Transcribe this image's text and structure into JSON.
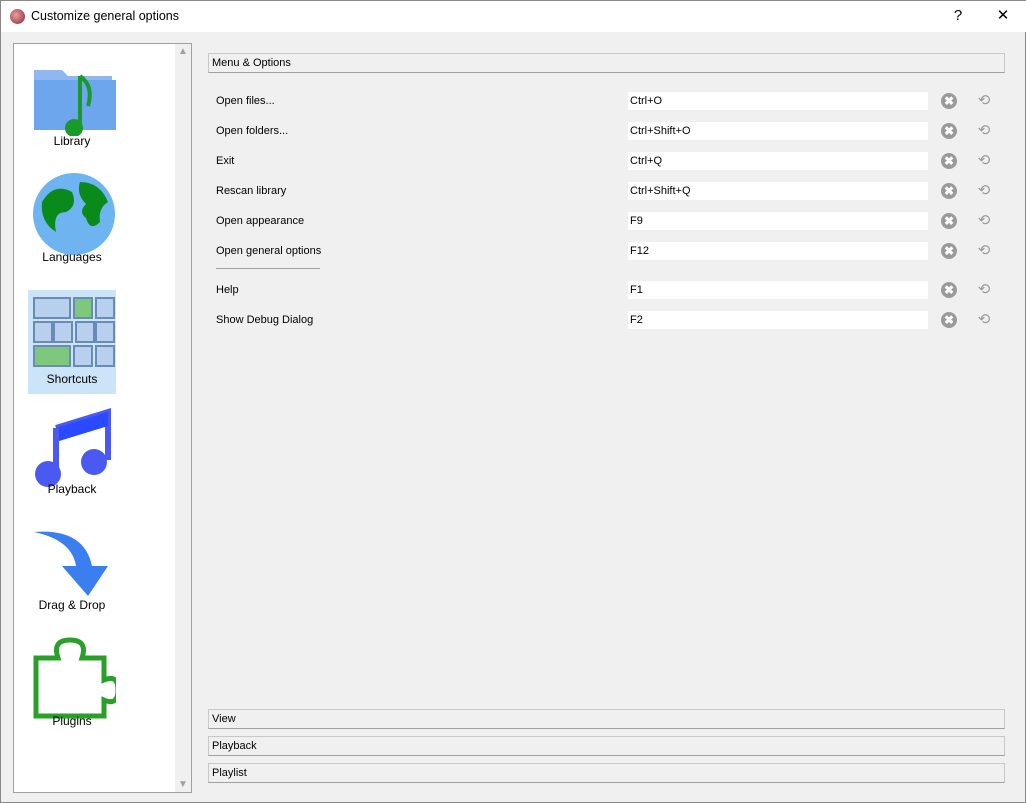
{
  "window": {
    "title": "Customize general options",
    "help": "?",
    "close": "✕"
  },
  "sidebar": {
    "items": [
      {
        "label": "Library"
      },
      {
        "label": "Languages"
      },
      {
        "label": "Shortcuts",
        "selected": true
      },
      {
        "label": "Playback"
      },
      {
        "label": "Drag & Drop"
      },
      {
        "label": "Plugins"
      }
    ]
  },
  "sections": {
    "menu": "Menu & Options",
    "view": "View",
    "playback": "Playback",
    "playlist": "Playlist"
  },
  "shortcuts": [
    {
      "label": "Open files...",
      "value": "Ctrl+O"
    },
    {
      "label": "Open folders...",
      "value": "Ctrl+Shift+O"
    },
    {
      "label": "Exit",
      "value": "Ctrl+Q"
    },
    {
      "label": "Rescan library",
      "value": "Ctrl+Shift+Q"
    },
    {
      "label": "Open appearance",
      "value": "F9"
    },
    {
      "label": "Open general options",
      "value": "F12"
    },
    {
      "label": "Help",
      "value": "F1"
    },
    {
      "label": "Show Debug Dialog",
      "value": "F2"
    }
  ],
  "icons": {
    "clear": "✖",
    "reset": "⟲"
  }
}
